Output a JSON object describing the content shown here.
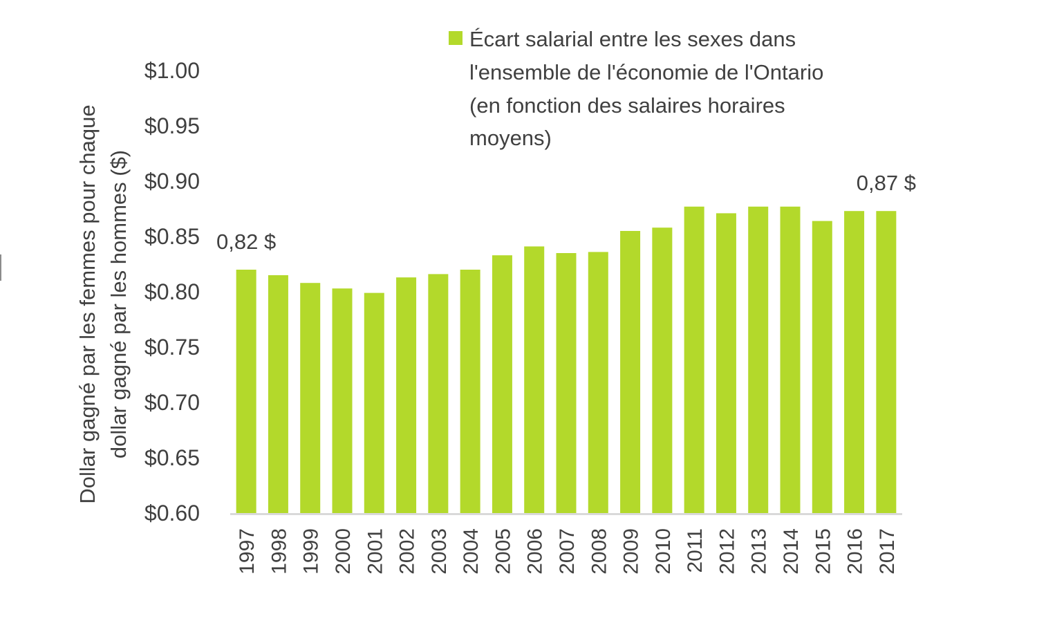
{
  "colors": {
    "bar": "#b3d92b",
    "axis_line": "#d9d9d9",
    "text": "#404040"
  },
  "chart_data": {
    "type": "bar",
    "categories": [
      "1997",
      "1998",
      "1999",
      "2000",
      "2001",
      "2002",
      "2003",
      "2004",
      "2005",
      "2006",
      "2007",
      "2008",
      "2009",
      "2010",
      "2011",
      "2012",
      "2013",
      "2014",
      "2015",
      "2016",
      "2017"
    ],
    "series": [
      {
        "name": "Écart salarial entre les sexes dans l'ensemble de l'économie de l'Ontario (en fonction des salaires horaires moyens)",
        "values": [
          0.82,
          0.815,
          0.808,
          0.803,
          0.799,
          0.813,
          0.816,
          0.82,
          0.833,
          0.841,
          0.835,
          0.836,
          0.855,
          0.858,
          0.877,
          0.871,
          0.877,
          0.877,
          0.864,
          0.873,
          0.873
        ]
      }
    ],
    "legend_lines": [
      "Écart salarial entre les sexes dans",
      "l'ensemble de l'économie de l'Ontario",
      "(en fonction des salaires horaires",
      "moyens)"
    ],
    "ylabel_lines": [
      "Dollar gagné par les femmes pour chaque",
      "dollar gagné par les hommes ($)"
    ],
    "xlabel": "",
    "ylim": [
      0.6,
      1.0
    ],
    "yticks": [
      1.0,
      0.95,
      0.9,
      0.85,
      0.8,
      0.75,
      0.7,
      0.65,
      0.6
    ],
    "ytick_labels": [
      "$1.00",
      "$0.95",
      "$0.90",
      "$0.85",
      "$0.80",
      "$0.75",
      "$0.70",
      "$0.65",
      "$0.60"
    ],
    "annotations": [
      {
        "category": "1997",
        "text": "0,82 $"
      },
      {
        "category": "2017",
        "text": "0,87 $"
      }
    ],
    "grid": false,
    "legend_position": "top-right"
  }
}
